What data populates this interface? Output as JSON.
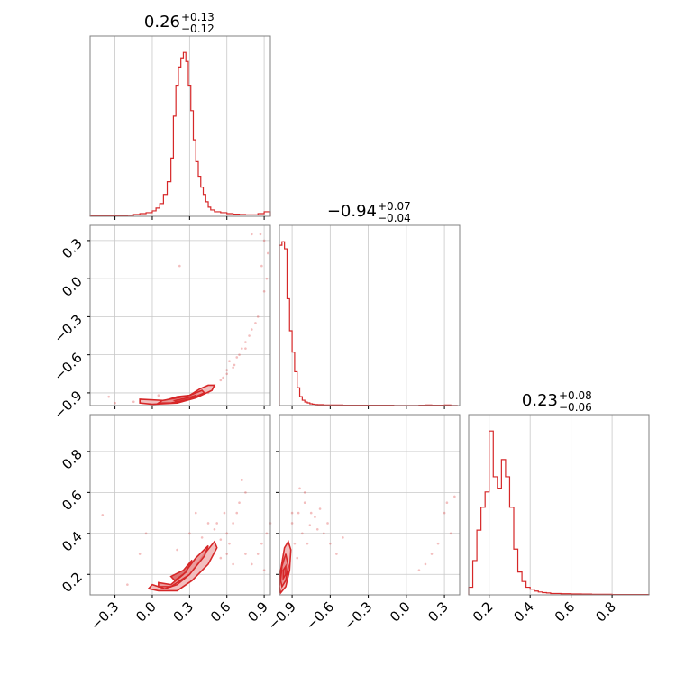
{
  "colors": {
    "accent": "#d62728",
    "fill": "#f0b4b4",
    "frame": "#808080",
    "grid": "#c8c8c8"
  },
  "chart_data": {
    "type": "corner",
    "grid": true,
    "params": [
      {
        "range": [
          -0.5,
          0.95
        ],
        "ticks": [
          "−0.3",
          "0.0",
          "0.3",
          "0.6",
          "0.9"
        ],
        "tick_values": [
          -0.3,
          0.0,
          0.3,
          0.6,
          0.9
        ],
        "title": {
          "value": "0.26",
          "upper": "+0.13",
          "lower": "−0.12"
        }
      },
      {
        "range": [
          -1.0,
          0.42
        ],
        "ticks": [
          "−0.9",
          "−0.6",
          "−0.3",
          "0.0",
          "0.3"
        ],
        "tick_values": [
          -0.9,
          -0.6,
          -0.3,
          0.0,
          0.3
        ],
        "title": {
          "value": "−0.94",
          "upper": "+0.07",
          "lower": "−0.04"
        }
      },
      {
        "range": [
          0.1,
          0.98
        ],
        "ticks": [
          "0.2",
          "0.4",
          "0.6",
          "0.8"
        ],
        "tick_values": [
          0.2,
          0.4,
          0.6,
          0.8
        ],
        "title": {
          "value": "0.23",
          "upper": "+0.08",
          "lower": "−0.06"
        }
      }
    ],
    "hist1": {
      "x": [
        -0.5,
        -0.45,
        -0.4,
        -0.35,
        -0.3,
        -0.25,
        -0.2,
        -0.15,
        -0.1,
        -0.05,
        0.0,
        0.03,
        0.06,
        0.09,
        0.12,
        0.15,
        0.17,
        0.19,
        0.21,
        0.23,
        0.25,
        0.27,
        0.29,
        0.31,
        0.33,
        0.35,
        0.37,
        0.39,
        0.41,
        0.43,
        0.45,
        0.47,
        0.5,
        0.55,
        0.6,
        0.65,
        0.7,
        0.75,
        0.8,
        0.85,
        0.9,
        0.95
      ],
      "y": [
        0.3,
        0.3,
        0.2,
        0.4,
        0.2,
        0.4,
        0.6,
        1.0,
        1.5,
        2.0,
        3.0,
        4.5,
        7,
        12,
        19,
        32,
        55,
        72,
        82,
        87,
        90,
        85,
        72,
        58,
        42,
        30,
        22,
        16,
        12,
        8,
        5,
        3.5,
        2.5,
        2,
        1.5,
        1.2,
        1.0,
        0.8,
        0.8,
        1.5,
        2.5,
        2
      ]
    },
    "hist2": {
      "x": [
        -1.0,
        -0.98,
        -0.96,
        -0.94,
        -0.92,
        -0.9,
        -0.88,
        -0.86,
        -0.84,
        -0.82,
        -0.8,
        -0.78,
        -0.76,
        -0.74,
        -0.72,
        -0.7,
        -0.65,
        -0.6,
        -0.5,
        -0.4,
        -0.3,
        -0.2,
        -0.1,
        0.0,
        0.05,
        0.1,
        0.15,
        0.2,
        0.25,
        0.3,
        0.35,
        0.4
      ],
      "y": [
        90,
        92,
        88,
        60,
        42,
        30,
        19,
        10,
        5,
        3,
        2,
        1.5,
        1,
        0.8,
        0.6,
        0.5,
        0.3,
        0.3,
        0.2,
        0.2,
        0.2,
        0.2,
        0.1,
        0.1,
        0.1,
        0.2,
        0.3,
        0.2,
        0.2,
        0.3,
        0.1,
        0
      ]
    },
    "hist3": {
      "x": [
        0.1,
        0.12,
        0.14,
        0.16,
        0.18,
        0.2,
        0.22,
        0.24,
        0.26,
        0.28,
        0.3,
        0.32,
        0.34,
        0.36,
        0.38,
        0.4,
        0.42,
        0.44,
        0.46,
        0.48,
        0.5,
        0.55,
        0.6,
        0.65,
        0.7,
        0.75,
        0.8,
        0.85,
        0.9,
        0.98
      ],
      "y": [
        4,
        18,
        34,
        46,
        54,
        86,
        62,
        56,
        71,
        62,
        46,
        24,
        12,
        7,
        4,
        3,
        2,
        1.5,
        1.2,
        1,
        0.7,
        0.6,
        0.5,
        0.4,
        0.3,
        0.3,
        0.2,
        0.2,
        0.2,
        0
      ]
    },
    "pair_p1_p2": {
      "contours": [
        [
          [
            -0.1,
            -0.95
          ],
          [
            0.1,
            -0.96
          ],
          [
            0.2,
            -0.93
          ],
          [
            0.3,
            -0.92
          ],
          [
            0.38,
            -0.87
          ],
          [
            0.45,
            -0.84
          ],
          [
            0.5,
            -0.84
          ],
          [
            0.48,
            -0.88
          ],
          [
            0.35,
            -0.94
          ],
          [
            0.2,
            -0.98
          ],
          [
            0.0,
            -0.99
          ],
          [
            -0.1,
            -0.98
          ]
        ],
        [
          [
            0.08,
            -0.96
          ],
          [
            0.2,
            -0.94
          ],
          [
            0.3,
            -0.92
          ],
          [
            0.4,
            -0.88
          ],
          [
            0.42,
            -0.9
          ],
          [
            0.3,
            -0.95
          ],
          [
            0.15,
            -0.98
          ],
          [
            0.05,
            -0.98
          ]
        ],
        [
          [
            0.18,
            -0.96
          ],
          [
            0.28,
            -0.94
          ],
          [
            0.35,
            -0.92
          ],
          [
            0.3,
            -0.95
          ],
          [
            0.2,
            -0.97
          ]
        ]
      ],
      "points": [
        [
          0.65,
          -0.7
        ],
        [
          0.7,
          -0.6
        ],
        [
          0.75,
          -0.5
        ],
        [
          0.8,
          -0.4
        ],
        [
          0.85,
          -0.3
        ],
        [
          0.9,
          -0.1
        ],
        [
          0.88,
          0.1
        ],
        [
          0.93,
          0.2
        ],
        [
          0.9,
          0.3
        ],
        [
          0.87,
          0.35
        ],
        [
          0.6,
          -0.75
        ],
        [
          0.55,
          -0.8
        ],
        [
          0.5,
          -0.85
        ],
        [
          -0.15,
          -0.97
        ],
        [
          -0.35,
          -0.93
        ],
        [
          -0.3,
          -0.98
        ],
        [
          0.22,
          0.1
        ],
        [
          0.62,
          -0.65
        ],
        [
          0.72,
          -0.55
        ],
        [
          0.57,
          -0.78
        ],
        [
          0.68,
          -0.62
        ],
        [
          0.78,
          -0.45
        ],
        [
          0.83,
          -0.35
        ],
        [
          0.92,
          0.0
        ],
        [
          0.8,
          0.35
        ],
        [
          0.75,
          -0.55
        ],
        [
          0.6,
          -0.72
        ],
        [
          0.66,
          -0.68
        ],
        [
          0.05,
          -0.92
        ],
        [
          0.45,
          -0.9
        ]
      ]
    },
    "pair_p1_p3": {
      "contours": [
        [
          [
            0.0,
            0.15
          ],
          [
            0.1,
            0.13
          ],
          [
            0.2,
            0.15
          ],
          [
            0.3,
            0.2
          ],
          [
            0.42,
            0.3
          ],
          [
            0.5,
            0.36
          ],
          [
            0.52,
            0.33
          ],
          [
            0.45,
            0.25
          ],
          [
            0.32,
            0.17
          ],
          [
            0.2,
            0.12
          ],
          [
            0.05,
            0.12
          ],
          [
            -0.03,
            0.13
          ]
        ],
        [
          [
            0.05,
            0.16
          ],
          [
            0.15,
            0.15
          ],
          [
            0.25,
            0.2
          ],
          [
            0.35,
            0.28
          ],
          [
            0.45,
            0.34
          ],
          [
            0.42,
            0.29
          ],
          [
            0.3,
            0.2
          ],
          [
            0.15,
            0.14
          ],
          [
            0.05,
            0.14
          ]
        ],
        [
          [
            0.15,
            0.19
          ],
          [
            0.25,
            0.22
          ],
          [
            0.32,
            0.27
          ],
          [
            0.27,
            0.21
          ],
          [
            0.18,
            0.17
          ]
        ]
      ],
      "points": [
        [
          -0.4,
          0.49
        ],
        [
          0.55,
          0.37
        ],
        [
          0.6,
          0.4
        ],
        [
          0.65,
          0.45
        ],
        [
          0.7,
          0.55
        ],
        [
          0.75,
          0.6
        ],
        [
          0.72,
          0.66
        ],
        [
          0.9,
          0.22
        ],
        [
          0.85,
          0.3
        ],
        [
          0.92,
          0.4
        ],
        [
          0.6,
          0.3
        ],
        [
          0.5,
          0.42
        ],
        [
          0.45,
          0.45
        ],
        [
          -0.1,
          0.3
        ],
        [
          0.35,
          0.5
        ],
        [
          0.65,
          0.25
        ],
        [
          0.8,
          0.25
        ],
        [
          0.55,
          0.28
        ],
        [
          0.95,
          0.45
        ],
        [
          0.4,
          0.38
        ],
        [
          -0.2,
          0.15
        ],
        [
          0.62,
          0.35
        ],
        [
          0.52,
          0.45
        ],
        [
          0.68,
          0.5
        ],
        [
          0.88,
          0.35
        ],
        [
          0.3,
          0.4
        ],
        [
          0.2,
          0.32
        ],
        [
          0.75,
          0.3
        ],
        [
          -0.05,
          0.4
        ],
        [
          0.58,
          0.5
        ]
      ]
    },
    "pair_p2_p3": {
      "contours": [
        [
          [
            -0.99,
            0.11
          ],
          [
            -0.95,
            0.14
          ],
          [
            -0.92,
            0.22
          ],
          [
            -0.91,
            0.32
          ],
          [
            -0.93,
            0.36
          ],
          [
            -0.96,
            0.33
          ],
          [
            -0.99,
            0.22
          ],
          [
            -1.0,
            0.14
          ]
        ],
        [
          [
            -0.98,
            0.14
          ],
          [
            -0.95,
            0.17
          ],
          [
            -0.93,
            0.24
          ],
          [
            -0.95,
            0.3
          ],
          [
            -0.98,
            0.24
          ],
          [
            -0.99,
            0.17
          ]
        ],
        [
          [
            -0.97,
            0.18
          ],
          [
            -0.95,
            0.2
          ],
          [
            -0.95,
            0.24
          ],
          [
            -0.97,
            0.22
          ]
        ]
      ],
      "points": [
        [
          -0.9,
          0.45
        ],
        [
          -0.85,
          0.5
        ],
        [
          -0.8,
          0.55
        ],
        [
          -0.75,
          0.5
        ],
        [
          -0.7,
          0.42
        ],
        [
          -0.65,
          0.4
        ],
        [
          -0.8,
          0.6
        ],
        [
          -0.82,
          0.4
        ],
        [
          -0.88,
          0.35
        ],
        [
          -0.6,
          0.35
        ],
        [
          -0.55,
          0.3
        ],
        [
          -0.72,
          0.48
        ],
        [
          -0.78,
          0.35
        ],
        [
          0.1,
          0.22
        ],
        [
          0.15,
          0.25
        ],
        [
          0.3,
          0.5
        ],
        [
          0.32,
          0.55
        ],
        [
          0.35,
          0.4
        ],
        [
          0.25,
          0.35
        ],
        [
          -0.5,
          0.38
        ],
        [
          -0.86,
          0.28
        ],
        [
          -0.76,
          0.44
        ],
        [
          -0.68,
          0.52
        ],
        [
          -0.9,
          0.5
        ],
        [
          -0.84,
          0.62
        ],
        [
          0.2,
          0.3
        ],
        [
          0.38,
          0.58
        ],
        [
          -0.62,
          0.45
        ]
      ]
    }
  }
}
